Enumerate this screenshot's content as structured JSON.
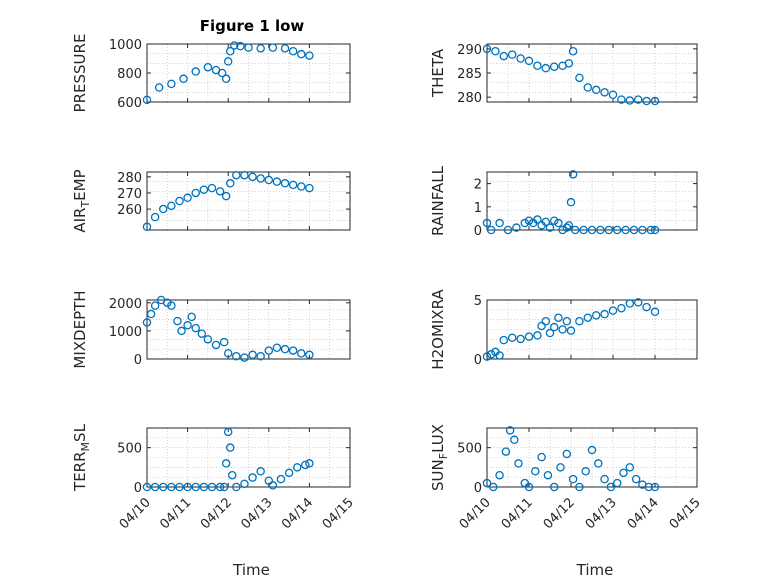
{
  "figure": {
    "title": "Figure 1 low"
  },
  "colors": {
    "marker": "#0072bd",
    "axis": "#262626",
    "grid": "#b8b8b8"
  },
  "x_axis": {
    "ticks": [
      0,
      1,
      2,
      3,
      4,
      5
    ],
    "tick_labels": [
      "04/10",
      "04/11",
      "04/12",
      "04/13",
      "04/14",
      "04/15"
    ],
    "label": "Time",
    "range": [
      0,
      5
    ],
    "data_end": 4.05
  },
  "chart_data": [
    {
      "type": "scatter",
      "ylabel": "PRESSURE",
      "ylim": [
        600,
        1000
      ],
      "yticks": [
        600,
        800,
        1000
      ],
      "yticklabels": [
        "600",
        "800",
        "1000"
      ],
      "x": [
        0,
        0.3,
        0.6,
        0.9,
        1.2,
        1.5,
        1.7,
        1.85,
        1.95,
        2.0,
        2.05,
        2.15,
        2.3,
        2.5,
        2.8,
        3.1,
        3.4,
        3.6,
        3.8,
        4.0
      ],
      "y": [
        615,
        700,
        725,
        760,
        810,
        840,
        820,
        800,
        760,
        880,
        950,
        990,
        985,
        975,
        970,
        975,
        970,
        950,
        930,
        920
      ]
    },
    {
      "type": "scatter",
      "ylabel": "THETA",
      "ylim": [
        279,
        291
      ],
      "yticks": [
        280,
        285,
        290
      ],
      "yticklabels": [
        "280",
        "285",
        "290"
      ],
      "x": [
        0,
        0.2,
        0.4,
        0.6,
        0.8,
        1.0,
        1.2,
        1.4,
        1.6,
        1.8,
        1.95,
        2.05,
        2.2,
        2.4,
        2.6,
        2.8,
        3.0,
        3.2,
        3.4,
        3.6,
        3.8,
        4.0
      ],
      "y": [
        290,
        289.5,
        288.5,
        288.8,
        288,
        287.5,
        286.5,
        286,
        286.3,
        286.5,
        287,
        289.5,
        284,
        282,
        281.5,
        281,
        280.5,
        279.5,
        279.3,
        279.5,
        279.2,
        279.2
      ]
    },
    {
      "type": "scatter",
      "ylabel": "AIR_TEMP",
      "ylim": [
        247,
        283
      ],
      "yticks": [
        260,
        270,
        280
      ],
      "yticklabels": [
        "260",
        "270",
        "280"
      ],
      "x": [
        0,
        0.2,
        0.4,
        0.6,
        0.8,
        1.0,
        1.2,
        1.4,
        1.6,
        1.8,
        1.95,
        2.05,
        2.2,
        2.4,
        2.6,
        2.8,
        3.0,
        3.2,
        3.4,
        3.6,
        3.8,
        4.0
      ],
      "y": [
        249,
        255,
        260,
        262,
        265,
        267,
        270,
        272,
        273,
        271,
        268,
        276,
        281,
        281,
        280,
        279,
        278,
        277,
        276,
        275,
        274,
        273
      ]
    },
    {
      "type": "scatter",
      "ylabel": "RAINFALL",
      "ylim": [
        0,
        2.5
      ],
      "yticks": [
        0,
        1,
        2
      ],
      "yticklabels": [
        "0",
        "1",
        "2"
      ],
      "x": [
        0,
        0.1,
        0.3,
        0.5,
        0.7,
        0.9,
        1.0,
        1.1,
        1.2,
        1.3,
        1.4,
        1.5,
        1.6,
        1.7,
        1.8,
        1.9,
        1.95,
        2.0,
        2.05,
        2.1,
        2.3,
        2.5,
        2.7,
        2.9,
        3.1,
        3.3,
        3.5,
        3.7,
        3.9,
        4.0
      ],
      "y": [
        0.3,
        0,
        0.3,
        0,
        0.1,
        0.3,
        0.4,
        0.3,
        0.45,
        0.2,
        0.35,
        0.1,
        0.4,
        0.3,
        0,
        0.1,
        0.2,
        1.2,
        2.4,
        0,
        0,
        0,
        0,
        0,
        0,
        0,
        0,
        0,
        0,
        0
      ]
    },
    {
      "type": "scatter",
      "ylabel": "MIXDEPTH",
      "ylim": [
        0,
        2100
      ],
      "yticks": [
        0,
        1000,
        2000
      ],
      "yticklabels": [
        "0",
        "1000",
        "2000"
      ],
      "x": [
        0,
        0.1,
        0.2,
        0.35,
        0.5,
        0.6,
        0.75,
        0.85,
        1.0,
        1.1,
        1.2,
        1.35,
        1.5,
        1.7,
        1.9,
        2.0,
        2.2,
        2.4,
        2.6,
        2.8,
        3.0,
        3.2,
        3.4,
        3.6,
        3.8,
        4.0
      ],
      "y": [
        1300,
        1600,
        1900,
        2100,
        2000,
        1900,
        1350,
        1000,
        1200,
        1500,
        1100,
        900,
        700,
        500,
        600,
        200,
        100,
        50,
        150,
        100,
        300,
        400,
        350,
        300,
        200,
        150
      ]
    },
    {
      "type": "scatter",
      "ylabel": "H2OMIXRA",
      "ylim": [
        0,
        5
      ],
      "yticks": [
        0,
        5
      ],
      "yticklabels": [
        "0",
        "5"
      ],
      "x": [
        0,
        0.1,
        0.2,
        0.3,
        0.4,
        0.6,
        0.8,
        1.0,
        1.2,
        1.3,
        1.4,
        1.5,
        1.6,
        1.7,
        1.8,
        1.9,
        2.0,
        2.2,
        2.4,
        2.6,
        2.8,
        3.0,
        3.2,
        3.4,
        3.6,
        3.8,
        4.0
      ],
      "y": [
        0.2,
        0.4,
        0.6,
        0.3,
        1.6,
        1.8,
        1.7,
        1.9,
        2.0,
        2.8,
        3.2,
        2.2,
        2.7,
        3.5,
        2.5,
        3.2,
        2.4,
        3.2,
        3.5,
        3.7,
        3.8,
        4.1,
        4.3,
        4.7,
        4.8,
        4.4,
        4.0
      ]
    },
    {
      "type": "scatter",
      "ylabel": "TERR_MSL",
      "ylim": [
        0,
        750
      ],
      "yticks": [
        0,
        500
      ],
      "yticklabels": [
        "0",
        "500"
      ],
      "x": [
        0,
        0.2,
        0.4,
        0.6,
        0.8,
        1.0,
        1.2,
        1.4,
        1.6,
        1.8,
        1.9,
        1.95,
        2.0,
        2.05,
        2.1,
        2.2,
        2.4,
        2.6,
        2.8,
        3.0,
        3.1,
        3.3,
        3.5,
        3.7,
        3.9,
        4.0
      ],
      "y": [
        0,
        0,
        0,
        0,
        0,
        0,
        0,
        0,
        0,
        0,
        0,
        300,
        700,
        500,
        150,
        0,
        40,
        120,
        200,
        80,
        20,
        100,
        180,
        250,
        280,
        300
      ]
    },
    {
      "type": "scatter",
      "ylabel": "SUN_FLUX",
      "ylim": [
        0,
        750
      ],
      "yticks": [
        0,
        500
      ],
      "yticklabels": [
        "0",
        "500"
      ],
      "x": [
        0,
        0.15,
        0.3,
        0.45,
        0.55,
        0.65,
        0.75,
        0.9,
        1.0,
        1.15,
        1.3,
        1.45,
        1.6,
        1.75,
        1.9,
        2.05,
        2.2,
        2.35,
        2.5,
        2.65,
        2.8,
        2.95,
        3.1,
        3.25,
        3.4,
        3.55,
        3.7,
        3.85,
        4.0
      ],
      "y": [
        50,
        0,
        150,
        450,
        720,
        600,
        300,
        50,
        0,
        200,
        380,
        150,
        0,
        250,
        420,
        100,
        0,
        200,
        470,
        300,
        100,
        0,
        50,
        180,
        250,
        100,
        30,
        0,
        0
      ]
    }
  ]
}
